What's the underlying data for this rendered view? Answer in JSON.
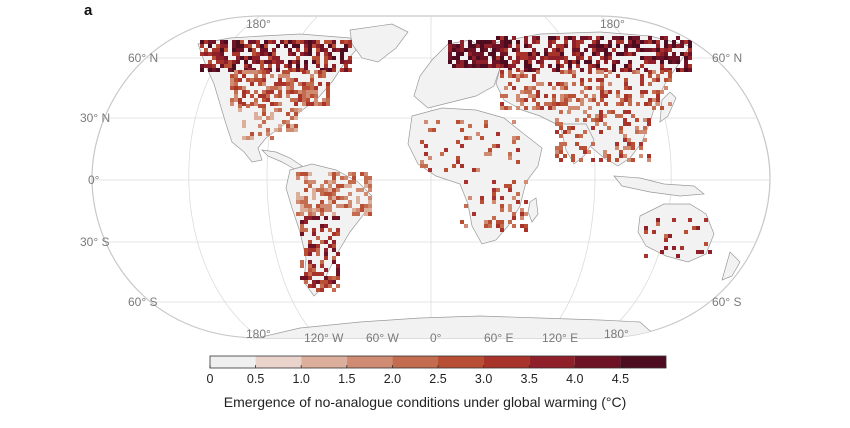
{
  "panel_label": "a",
  "map": {
    "lat_labels": [
      "60° N",
      "30° N",
      "0°",
      "30° S",
      "60° S"
    ],
    "lat_labels_right": [
      "60° N",
      "60° S"
    ],
    "top_lon_labels": [
      "180°",
      "180°"
    ],
    "bottom_lon_labels": [
      "180°",
      "120° W",
      "60° W",
      "0°",
      "60° E",
      "120° E",
      "180°"
    ],
    "colors": {
      "outline": "#c8c8c8",
      "land": "#f2f2f2",
      "coast": "#9a9a9a",
      "grid": "#d9d9d9"
    }
  },
  "legend": {
    "ticks": [
      "0",
      "0.5",
      "1.0",
      "1.5",
      "2.0",
      "2.5",
      "3.0",
      "3.5",
      "4.0",
      "4.5"
    ],
    "colors": [
      "#efefef",
      "#ead3cb",
      "#dcae9c",
      "#cf8c73",
      "#c46c4f",
      "#b84f34",
      "#a8332a",
      "#8f1f28",
      "#6e1326",
      "#4d0c1f"
    ],
    "title": "Emergence of no-analogue conditions under global warming (°C)"
  }
}
